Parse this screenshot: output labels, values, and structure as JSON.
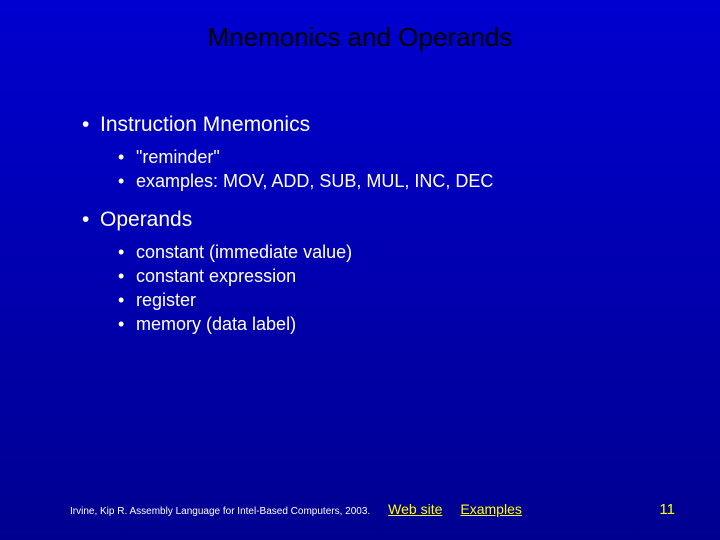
{
  "colors": {
    "background_top": "#0000d0",
    "background_bottom": "#000090",
    "title_color": "#000000",
    "body_text": "#ffffff",
    "link_color": "#ffff00",
    "page_num_color": "#ffff00"
  },
  "typography": {
    "title_fontsize": 26,
    "section_fontsize": 21,
    "sub_fontsize": 18,
    "citation_fontsize": 10,
    "link_fontsize": 14,
    "page_fontsize": 15,
    "font_family": "Arial"
  },
  "title": "Mnemonics and Operands",
  "sections": [
    {
      "heading": "Instruction Mnemonics",
      "items": [
        "\"reminder\"",
        "examples: MOV, ADD, SUB, MUL, INC, DEC"
      ]
    },
    {
      "heading": "Operands",
      "items": [
        "constant (immediate value)",
        "constant expression",
        "register",
        "memory (data label)"
      ]
    }
  ],
  "footer": {
    "citation": "Irvine, Kip R. Assembly Language for Intel-Based Computers, 2003.",
    "links": [
      "Web site",
      "Examples"
    ],
    "page_number": "11"
  },
  "bullet_char": "•"
}
